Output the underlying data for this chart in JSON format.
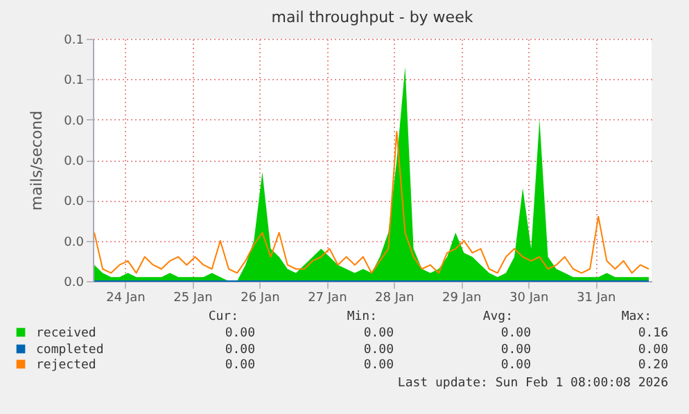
{
  "chart_data": {
    "type": "area",
    "title": "mail throughput - by week",
    "ylabel": "mails/second",
    "x": [
      "2026-01-24T01:00",
      "2026-01-24T04:00",
      "2026-01-24T07:00",
      "2026-01-24T10:00",
      "2026-01-24T13:00",
      "2026-01-24T16:00",
      "2026-01-24T19:00",
      "2026-01-24T22:00",
      "2026-01-25T01:00",
      "2026-01-25T04:00",
      "2026-01-25T07:00",
      "2026-01-25T10:00",
      "2026-01-25T13:00",
      "2026-01-25T16:00",
      "2026-01-25T19:00",
      "2026-01-25T22:00",
      "2026-01-26T01:00",
      "2026-01-26T04:00",
      "2026-01-26T07:00",
      "2026-01-26T10:00",
      "2026-01-26T13:00",
      "2026-01-26T16:00",
      "2026-01-26T19:00",
      "2026-01-26T22:00",
      "2026-01-27T01:00",
      "2026-01-27T04:00",
      "2026-01-27T07:00",
      "2026-01-27T10:00",
      "2026-01-27T13:00",
      "2026-01-27T16:00",
      "2026-01-27T19:00",
      "2026-01-27T22:00",
      "2026-01-28T01:00",
      "2026-01-28T04:00",
      "2026-01-28T07:00",
      "2026-01-28T10:00",
      "2026-01-28T13:00",
      "2026-01-28T16:00",
      "2026-01-28T19:00",
      "2026-01-28T22:00",
      "2026-01-29T01:00",
      "2026-01-29T04:00",
      "2026-01-29T07:00",
      "2026-01-29T10:00",
      "2026-01-29T13:00",
      "2026-01-29T16:00",
      "2026-01-29T19:00",
      "2026-01-29T22:00",
      "2026-01-30T01:00",
      "2026-01-30T04:00",
      "2026-01-30T07:00",
      "2026-01-30T10:00",
      "2026-01-30T13:00",
      "2026-01-30T16:00",
      "2026-01-30T19:00",
      "2026-01-30T22:00",
      "2026-01-31T01:00",
      "2026-01-31T04:00",
      "2026-01-31T07:00",
      "2026-01-31T10:00",
      "2026-01-31T13:00",
      "2026-01-31T16:00",
      "2026-01-31T19:00",
      "2026-01-31T22:00",
      "2026-02-01T01:00",
      "2026-02-01T04:00",
      "2026-02-01T07:00"
    ],
    "series": [
      {
        "name": "received",
        "color": "#00cc00",
        "values": [
          0.004,
          0.002,
          0.001,
          0.001,
          0.002,
          0.001,
          0.001,
          0.001,
          0.001,
          0.002,
          0.001,
          0.001,
          0.001,
          0.001,
          0.002,
          0.001,
          0.0,
          0.0,
          0.004,
          0.01,
          0.027,
          0.008,
          0.006,
          0.003,
          0.002,
          0.004,
          0.006,
          0.008,
          0.006,
          0.004,
          0.003,
          0.002,
          0.003,
          0.002,
          0.006,
          0.012,
          0.03,
          0.053,
          0.008,
          0.003,
          0.002,
          0.003,
          0.006,
          0.012,
          0.007,
          0.006,
          0.004,
          0.002,
          0.001,
          0.002,
          0.006,
          0.023,
          0.008,
          0.04,
          0.006,
          0.003,
          0.002,
          0.001,
          0.001,
          0.001,
          0.001,
          0.002,
          0.001,
          0.001,
          0.001,
          0.001,
          0.001
        ]
      },
      {
        "name": "completed",
        "color": "#0066b3",
        "type": "line",
        "values": [
          0,
          0,
          0,
          0,
          0,
          0,
          0,
          0,
          0,
          0,
          0,
          0,
          0,
          0,
          0,
          0,
          0,
          0,
          0,
          0,
          0,
          0,
          0,
          0,
          0,
          0,
          0,
          0,
          0,
          0,
          0,
          0,
          0,
          0,
          0,
          0,
          0,
          0,
          0,
          0,
          0,
          0,
          0,
          0,
          0,
          0,
          0,
          0,
          0,
          0,
          0,
          0,
          0,
          0,
          0,
          0,
          0,
          0,
          0,
          0,
          0,
          0,
          0,
          0,
          0,
          0,
          0
        ]
      },
      {
        "name": "rejected",
        "color": "#ff8000",
        "type": "line",
        "values": [
          0.012,
          0.003,
          0.002,
          0.004,
          0.005,
          0.002,
          0.006,
          0.004,
          0.003,
          0.005,
          0.006,
          0.004,
          0.006,
          0.004,
          0.003,
          0.01,
          0.003,
          0.002,
          0.005,
          0.009,
          0.012,
          0.006,
          0.012,
          0.004,
          0.003,
          0.003,
          0.005,
          0.006,
          0.008,
          0.004,
          0.006,
          0.004,
          0.006,
          0.002,
          0.005,
          0.008,
          0.037,
          0.012,
          0.006,
          0.003,
          0.004,
          0.002,
          0.007,
          0.008,
          0.01,
          0.007,
          0.008,
          0.003,
          0.002,
          0.006,
          0.008,
          0.006,
          0.005,
          0.006,
          0.003,
          0.004,
          0.006,
          0.003,
          0.002,
          0.003,
          0.016,
          0.005,
          0.003,
          0.005,
          0.002,
          0.004,
          0.003
        ]
      }
    ],
    "xlim": [
      "2026-01-24T00:30",
      "2026-02-01T08:00"
    ],
    "xticks": [
      {
        "value": "2026-01-24T12:00",
        "label": "24 Jan"
      },
      {
        "value": "2026-01-25T12:00",
        "label": "25 Jan"
      },
      {
        "value": "2026-01-26T12:00",
        "label": "26 Jan"
      },
      {
        "value": "2026-01-27T12:00",
        "label": "27 Jan"
      },
      {
        "value": "2026-01-28T12:00",
        "label": "28 Jan"
      },
      {
        "value": "2026-01-29T12:00",
        "label": "29 Jan"
      },
      {
        "value": "2026-01-30T12:00",
        "label": "30 Jan"
      },
      {
        "value": "2026-01-31T12:00",
        "label": "31 Jan"
      }
    ],
    "ylim": [
      0,
      0.06
    ],
    "yticks": [
      {
        "value": 0,
        "label": "0.0"
      },
      {
        "value": 0.01,
        "label": "0.0"
      },
      {
        "value": 0.02,
        "label": "0.0"
      },
      {
        "value": 0.03,
        "label": "0.0"
      },
      {
        "value": 0.04,
        "label": "0.0"
      },
      {
        "value": 0.05,
        "label": "0.1"
      },
      {
        "value": 0.06,
        "label": "0.1"
      }
    ],
    "grid": true,
    "legend": "bottom",
    "annotations": [
      "Cur:",
      "Min:",
      "Avg:",
      "Max:",
      "0.00",
      "0.00",
      "0.00",
      "0.16",
      "0.00",
      "0.00",
      "0.00",
      "0.00",
      "0.00",
      "0.00",
      "0.00",
      "0.20",
      "Last update: Sun Feb  1 08:00:08 2026"
    ]
  }
}
